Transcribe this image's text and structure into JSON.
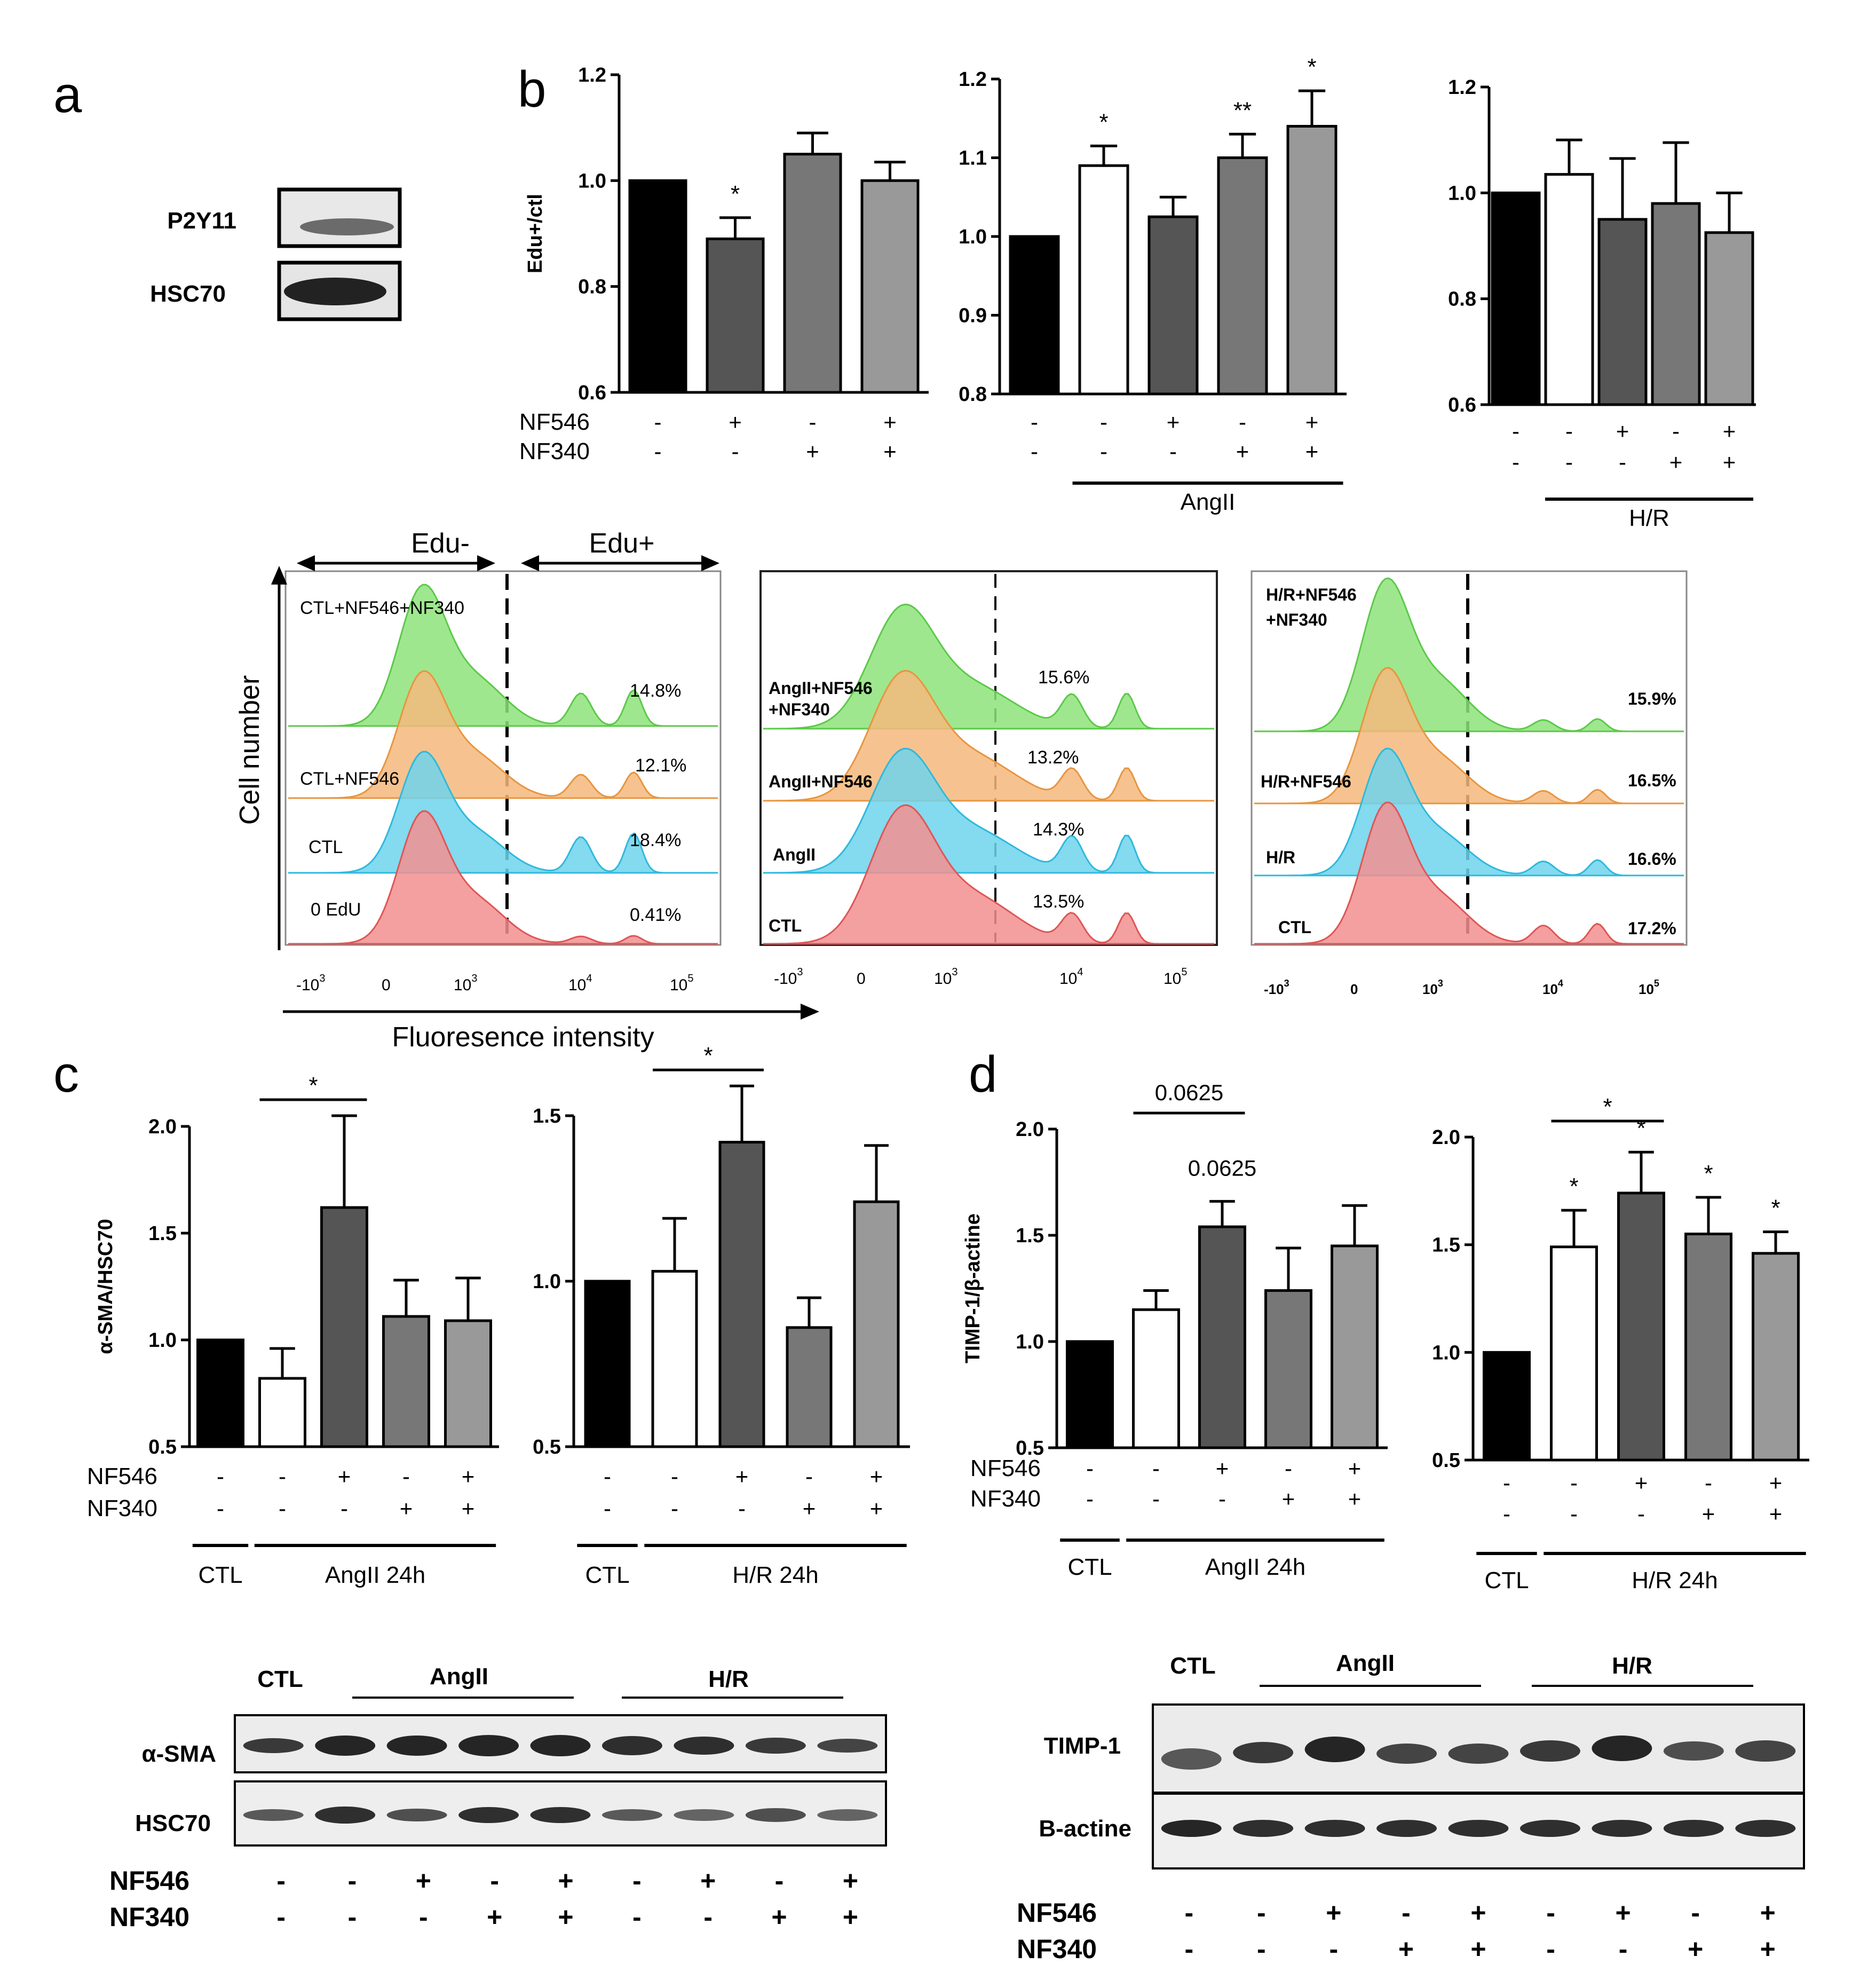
{
  "panels": {
    "a": "a",
    "b": "b",
    "c": "c",
    "d": "d"
  },
  "colors": {
    "black": "#000000",
    "white": "#ffffff",
    "dark": "#555555",
    "mid": "#777777",
    "light": "#999999",
    "green": "#8ee37a",
    "orange": "#f4b97c",
    "blue": "#6fd3ec",
    "red": "#f28f8f"
  },
  "blot_a": {
    "rows": [
      "P2Y11",
      "HSC70"
    ]
  },
  "flow": {
    "top_labels": [
      "Edu-",
      "Edu+"
    ],
    "y_axis_label": "Cell number",
    "x_axis_label": "Fluoresence intensity",
    "tick_labels": [
      "-10",
      "3",
      "0",
      "10",
      "3",
      "10",
      "4",
      "10",
      "5"
    ],
    "panels": [
      {
        "labels": [
          "CTL+NF546+NF340",
          "CTL+NF546",
          "CTL",
          "0 EdU"
        ],
        "pcts": [
          "14.8%",
          "12.1%",
          "18.4%",
          "0.41%"
        ]
      },
      {
        "labels": [
          "AngII+NF546",
          "+NF340",
          "AngII+NF546",
          "AngII",
          "CTL"
        ],
        "pcts": [
          "15.6%",
          "13.2%",
          "14.3%",
          "13.5%"
        ]
      },
      {
        "labels": [
          "H/R+NF546",
          "+NF340",
          "H/R+NF546",
          "H/R",
          "CTL"
        ],
        "pcts": [
          "15.9%",
          "16.5%",
          "16.6%",
          "17.2%"
        ]
      }
    ]
  },
  "chart_data": [
    {
      "type": "bar",
      "panel": "b",
      "ylabel": "Edu+/ctl",
      "ylim": [
        0.6,
        1.2
      ],
      "yticks": [
        "0.6",
        "0.8",
        "1.0",
        "1.2"
      ],
      "values": [
        1.0,
        0.89,
        1.05,
        1.0
      ],
      "errors": [
        0,
        0.04,
        0.04,
        0.035
      ],
      "fills": [
        "black",
        "dark",
        "mid",
        "light"
      ],
      "sig": [
        "",
        "*",
        "",
        ""
      ],
      "cond_rows": [
        {
          "name": "NF546",
          "signs": [
            "-",
            "+",
            "-",
            "+"
          ]
        },
        {
          "name": "NF340",
          "signs": [
            "-",
            "-",
            "+",
            "+"
          ]
        }
      ],
      "groups": []
    },
    {
      "type": "bar",
      "panel": "b",
      "ylabel": "",
      "ylim": [
        0.8,
        1.2
      ],
      "yticks": [
        "0.8",
        "0.9",
        "1.0",
        "1.1",
        "1.2"
      ],
      "values": [
        1.0,
        1.09,
        1.025,
        1.1,
        1.14
      ],
      "errors": [
        0,
        0.025,
        0.025,
        0.03,
        0.045
      ],
      "fills": [
        "black",
        "white",
        "dark",
        "mid",
        "light"
      ],
      "sig": [
        "",
        "*",
        "",
        "**",
        "*"
      ],
      "cond_rows": [
        {
          "name": "",
          "signs": [
            "-",
            "-",
            "+",
            "-",
            "+"
          ]
        },
        {
          "name": "",
          "signs": [
            "-",
            "-",
            "-",
            "+",
            "+"
          ]
        }
      ],
      "groups": [
        {
          "label": "AngII",
          "from": 1,
          "to": 4
        }
      ]
    },
    {
      "type": "bar",
      "panel": "b",
      "ylabel": "",
      "ylim": [
        0.6,
        1.2
      ],
      "yticks": [
        "0.6",
        "0.8",
        "1.0",
        "1.2"
      ],
      "values": [
        1.0,
        1.035,
        0.95,
        0.98,
        0.925
      ],
      "errors": [
        0,
        0.065,
        0.115,
        0.115,
        0.075
      ],
      "fills": [
        "black",
        "white",
        "dark",
        "mid",
        "light"
      ],
      "sig": [
        "",
        "",
        "",
        "",
        ""
      ],
      "cond_rows": [
        {
          "name": "",
          "signs": [
            "-",
            "-",
            "+",
            "-",
            "+"
          ]
        },
        {
          "name": "",
          "signs": [
            "-",
            "-",
            "-",
            "+",
            "+"
          ]
        }
      ],
      "groups": [
        {
          "label": "H/R",
          "from": 1,
          "to": 4
        }
      ]
    },
    {
      "type": "bar",
      "panel": "c",
      "ylabel": "α-SMA/HSC70",
      "ylim": [
        0.5,
        2.0
      ],
      "yticks": [
        "0.5",
        "1.0",
        "1.5",
        "2.0"
      ],
      "values": [
        1.0,
        0.82,
        1.62,
        1.11,
        1.09
      ],
      "errors": [
        0,
        0.14,
        0.43,
        0.17,
        0.2
      ],
      "fills": [
        "black",
        "white",
        "dark",
        "mid",
        "light"
      ],
      "sig": [
        "",
        "",
        "",
        "",
        ""
      ],
      "bracket": {
        "from": 1,
        "to": 2,
        "label": "*"
      },
      "cond_rows": [
        {
          "name": "NF546",
          "signs": [
            "-",
            "-",
            "+",
            "-",
            "+"
          ]
        },
        {
          "name": "NF340",
          "signs": [
            "-",
            "-",
            "-",
            "+",
            "+"
          ]
        }
      ],
      "groups": [
        {
          "label": "CTL",
          "from": 0,
          "to": 0
        },
        {
          "label": "AngII 24h",
          "from": 1,
          "to": 4
        }
      ]
    },
    {
      "type": "bar",
      "panel": "c",
      "ylabel": "",
      "ylim": [
        0.5,
        1.5
      ],
      "yticks": [
        "0.5",
        "1.0",
        "1.5"
      ],
      "values": [
        1.0,
        1.03,
        1.42,
        0.86,
        1.24
      ],
      "errors": [
        0,
        0.16,
        0.17,
        0.09,
        0.17
      ],
      "fills": [
        "black",
        "white",
        "dark",
        "mid",
        "light"
      ],
      "sig": [
        "",
        "",
        "",
        "",
        ""
      ],
      "bracket": {
        "from": 1,
        "to": 2,
        "label": "*"
      },
      "cond_rows": [
        {
          "name": "",
          "signs": [
            "-",
            "-",
            "+",
            "-",
            "+"
          ]
        },
        {
          "name": "",
          "signs": [
            "-",
            "-",
            "-",
            "+",
            "+"
          ]
        }
      ],
      "groups": [
        {
          "label": "CTL",
          "from": 0,
          "to": 0
        },
        {
          "label": "H/R 24h",
          "from": 1,
          "to": 4
        }
      ]
    },
    {
      "type": "bar",
      "panel": "d",
      "ylabel": "TIMP-1/β-actine",
      "ylim": [
        0.5,
        2.0
      ],
      "yticks": [
        "0.5",
        "1.0",
        "1.5",
        "2.0"
      ],
      "values": [
        1.0,
        1.15,
        1.54,
        1.24,
        1.45
      ],
      "errors": [
        0,
        0.09,
        0.12,
        0.2,
        0.19
      ],
      "fills": [
        "black",
        "white",
        "dark",
        "mid",
        "light"
      ],
      "sig": [
        "",
        "",
        "",
        "",
        ""
      ],
      "bracket": {
        "from": 1,
        "to": 2,
        "label": "0.0625"
      },
      "bracket2": {
        "from": 2,
        "label": "0.0625"
      },
      "cond_rows": [
        {
          "name": "NF546",
          "signs": [
            "-",
            "-",
            "+",
            "-",
            "+"
          ]
        },
        {
          "name": "NF340",
          "signs": [
            "-",
            "-",
            "-",
            "+",
            "+"
          ]
        }
      ],
      "groups": [
        {
          "label": "CTL",
          "from": 0,
          "to": 0
        },
        {
          "label": "AngII 24h",
          "from": 1,
          "to": 4
        }
      ]
    },
    {
      "type": "bar",
      "panel": "d",
      "ylabel": "",
      "ylim": [
        0.5,
        2.0
      ],
      "yticks": [
        "0.5",
        "1.0",
        "1.5",
        "2.0"
      ],
      "values": [
        1.0,
        1.49,
        1.74,
        1.55,
        1.46
      ],
      "errors": [
        0,
        0.17,
        0.19,
        0.17,
        0.1
      ],
      "fills": [
        "black",
        "white",
        "dark",
        "mid",
        "light"
      ],
      "sig": [
        "",
        "*",
        "*",
        "*",
        "*"
      ],
      "bracket": {
        "from": 1,
        "to": 2,
        "label": "*"
      },
      "cond_rows": [
        {
          "name": "",
          "signs": [
            "-",
            "-",
            "+",
            "-",
            "+"
          ]
        },
        {
          "name": "",
          "signs": [
            "-",
            "-",
            "-",
            "+",
            "+"
          ]
        }
      ],
      "groups": [
        {
          "label": "CTL",
          "from": 0,
          "to": 0
        },
        {
          "label": "H/R 24h",
          "from": 1,
          "to": 4
        }
      ]
    }
  ],
  "blot_c": {
    "header": [
      "CTL",
      "AngII",
      "H/R"
    ],
    "rows": [
      "α-SMA",
      "HSC70"
    ],
    "cond_rows": [
      {
        "name": "NF546",
        "signs": [
          "-",
          "-",
          "+",
          "-",
          "+",
          "-",
          "+",
          "-",
          "+"
        ]
      },
      {
        "name": "NF340",
        "signs": [
          "-",
          "-",
          "-",
          "+",
          "+",
          "-",
          "-",
          "+",
          "+"
        ]
      }
    ]
  },
  "blot_d": {
    "header": [
      "CTL",
      "AngII",
      "H/R"
    ],
    "rows": [
      "TIMP-1",
      "B-actine"
    ],
    "cond_rows": [
      {
        "name": "NF546",
        "signs": [
          "-",
          "-",
          "+",
          "-",
          "+",
          "-",
          "+",
          "-",
          "+"
        ]
      },
      {
        "name": "NF340",
        "signs": [
          "-",
          "-",
          "-",
          "+",
          "+",
          "-",
          "-",
          "+",
          "+"
        ]
      }
    ]
  }
}
